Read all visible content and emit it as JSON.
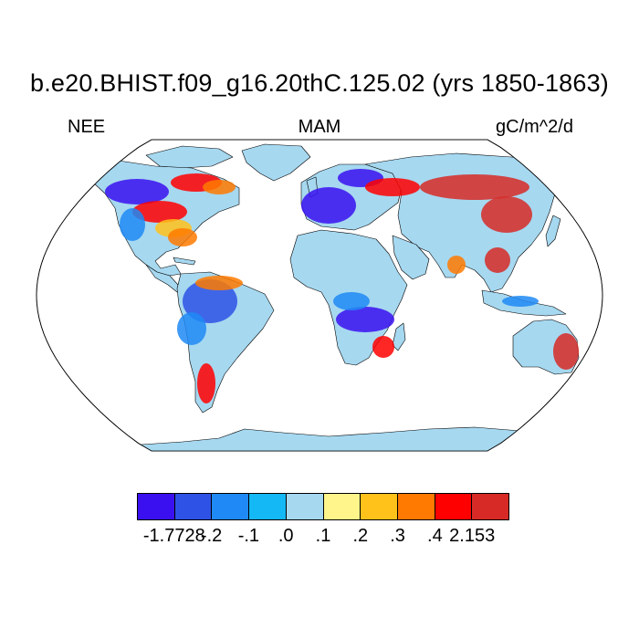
{
  "title": "b.e20.BHIST.f09_g16.20thC.125.02 (yrs 1850-1863)",
  "left_label": "NEE",
  "center_label": "MAM",
  "right_label": "gC/m^2/d",
  "map": {
    "projection": "Robinson",
    "ocean_color": "#ffffff",
    "default_land_color": "#a6d8f0",
    "coastline_color": "#000000"
  },
  "colorbar": {
    "colors": [
      "#3a10f0",
      "#2e52e6",
      "#1f8af5",
      "#14b8f5",
      "#a6d8f0",
      "#fff58a",
      "#ffc21a",
      "#ff7a00",
      "#ff0000",
      "#d72a26"
    ],
    "labels": [
      "-1.7728",
      "-.2",
      "-.1",
      ".0",
      ".1",
      ".2",
      ".3",
      ".4",
      "2.153"
    ]
  }
}
